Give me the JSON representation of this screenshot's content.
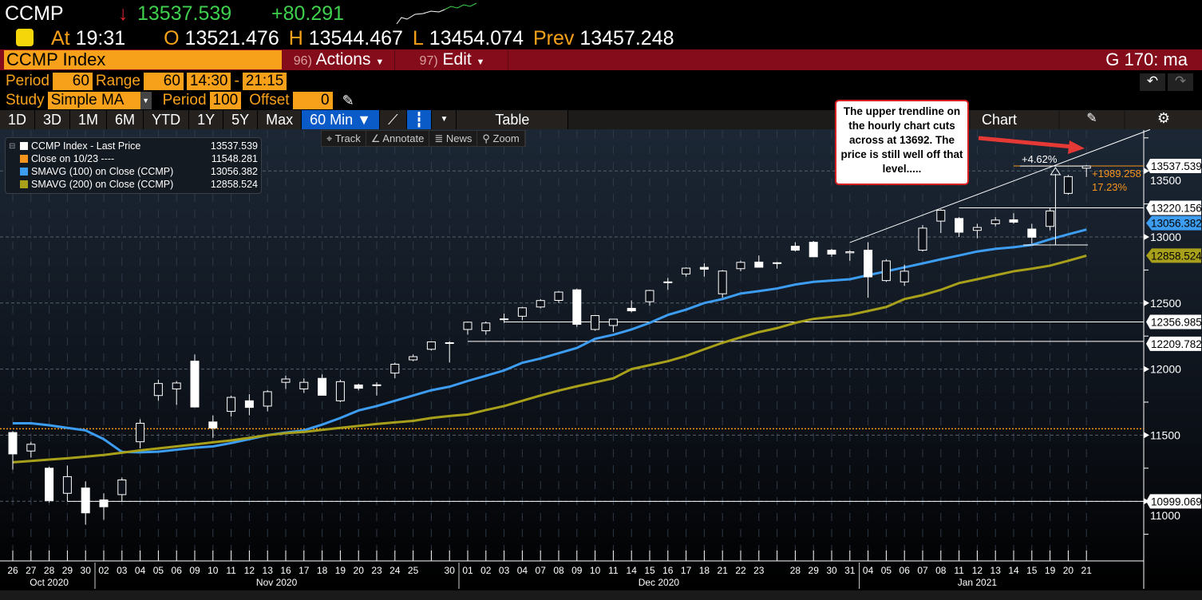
{
  "header": {
    "ticker": "CCMP",
    "arrow": "↓",
    "last": "13537.539",
    "change": "+80.291",
    "at_label": "At",
    "time": "19:31",
    "open_label": "O",
    "open": "13521.476",
    "high_label": "H",
    "high": "13544.467",
    "low_label": "L",
    "low": "13454.074",
    "prev_label": "Prev",
    "prev": "13457.248"
  },
  "bar": {
    "security": "CCMP Index",
    "actions_num": "96)",
    "actions": "Actions",
    "edit_num": "97)",
    "edit": "Edit",
    "function": "G 170: ma"
  },
  "params": {
    "period_label": "Period",
    "period": "60",
    "range_label": "Range",
    "range": "60",
    "from": "14:30",
    "dash": "-",
    "to": "21:15",
    "study_label": "Study",
    "study": "Simple MA",
    "study_period_label": "Period",
    "study_period": "100",
    "offset_label": "Offset",
    "offset": "0"
  },
  "tabs": [
    "1D",
    "3D",
    "1M",
    "6M",
    "YTD",
    "1Y",
    "5Y",
    "Max",
    "60 Min ▼"
  ],
  "table_label": "Table",
  "chart_label": "Chart",
  "tools": {
    "track": "Track",
    "annotate": "Annotate",
    "news": "News",
    "zoom": "Zoom"
  },
  "legend": [
    {
      "label": "CCMP Index - Last Price",
      "value": "13537.539",
      "color": "#ffffff"
    },
    {
      "label": "Close on 10/23 ----",
      "value": "11548.281",
      "color": "#f7941d"
    },
    {
      "label": "SMAVG (100)  on Close (CCMP)",
      "value": "13056.382",
      "color": "#3d9df2"
    },
    {
      "label": "SMAVG (200)  on Close (CCMP)",
      "value": "12858.524",
      "color": "#a8a01a"
    }
  ],
  "callout": "The upper trendline on the hourly chart cuts across at 13692. The price is still well off that level.....",
  "chart_data": {
    "type": "candlestick",
    "interval": "60 Min",
    "dates": [
      "26",
      "27",
      "28",
      "29",
      "30",
      "02",
      "03",
      "04",
      "05",
      "06",
      "09",
      "10",
      "11",
      "12",
      "13",
      "16",
      "17",
      "18",
      "19",
      "20",
      "23",
      "24",
      "25",
      "",
      "30",
      "01",
      "02",
      "03",
      "04",
      "07",
      "08",
      "09",
      "10",
      "11",
      "14",
      "15",
      "16",
      "17",
      "18",
      "21",
      "22",
      "23",
      "",
      "28",
      "29",
      "30",
      "31",
      "04",
      "05",
      "06",
      "07",
      "08",
      "11",
      "12",
      "13",
      "14",
      "15",
      "19",
      "20",
      "21"
    ],
    "months": [
      {
        "label": "Oct 2020",
        "from": 0,
        "to": 4
      },
      {
        "label": "Nov 2020",
        "from": 5,
        "to": 24
      },
      {
        "label": "Dec 2020",
        "from": 25,
        "to": 46
      },
      {
        "label": "Jan 2021",
        "from": 47,
        "to": 59
      }
    ],
    "ohlc": [
      [
        11520,
        11530,
        11240,
        11358
      ],
      [
        11380,
        11450,
        11330,
        11431
      ],
      [
        11250,
        11260,
        10990,
        11005
      ],
      [
        11060,
        11270,
        11000,
        11186
      ],
      [
        11100,
        11150,
        10822,
        10912
      ],
      [
        11010,
        11060,
        10860,
        10958
      ],
      [
        11050,
        11180,
        11000,
        11161
      ],
      [
        11450,
        11620,
        11400,
        11590
      ],
      [
        11800,
        11920,
        11760,
        11891
      ],
      [
        11850,
        11910,
        11730,
        11895
      ],
      [
        12060,
        12110,
        11710,
        11713
      ],
      [
        11600,
        11650,
        11480,
        11554
      ],
      [
        11680,
        11800,
        11640,
        11786
      ],
      [
        11760,
        11810,
        11650,
        11710
      ],
      [
        11720,
        11840,
        11680,
        11829
      ],
      [
        11900,
        11950,
        11850,
        11925
      ],
      [
        11850,
        11930,
        11820,
        11900
      ],
      [
        11930,
        11960,
        11800,
        11802
      ],
      [
        11760,
        11920,
        11750,
        11905
      ],
      [
        11880,
        11890,
        11840,
        11855
      ],
      [
        11880,
        11900,
        11800,
        11881
      ],
      [
        11970,
        12050,
        11930,
        12037
      ],
      [
        12070,
        12110,
        12060,
        12094
      ],
      [
        12150,
        12210,
        12140,
        12206
      ],
      [
        12200,
        12210,
        12050,
        12199
      ],
      [
        12300,
        12360,
        12260,
        12355
      ],
      [
        12290,
        12360,
        12260,
        12349
      ],
      [
        12380,
        12420,
        12350,
        12377
      ],
      [
        12400,
        12470,
        12370,
        12464
      ],
      [
        12470,
        12530,
        12460,
        12519
      ],
      [
        12520,
        12590,
        12500,
        12583
      ],
      [
        12600,
        12610,
        12320,
        12339
      ],
      [
        12300,
        12410,
        12290,
        12405
      ],
      [
        12330,
        12380,
        12280,
        12378
      ],
      [
        12460,
        12520,
        12430,
        12441
      ],
      [
        12510,
        12600,
        12480,
        12595
      ],
      [
        12660,
        12690,
        12600,
        12658
      ],
      [
        12720,
        12770,
        12700,
        12764
      ],
      [
        12770,
        12800,
        12700,
        12756
      ],
      [
        12570,
        12750,
        12540,
        12742
      ],
      [
        12760,
        12820,
        12740,
        12808
      ],
      [
        12810,
        12860,
        12770,
        12771
      ],
      [
        12800,
        12810,
        12760,
        12805
      ],
      [
        12930,
        12960,
        12890,
        12900
      ],
      [
        12960,
        12970,
        12850,
        12850
      ],
      [
        12900,
        12910,
        12850,
        12870
      ],
      [
        12880,
        12900,
        12820,
        12888
      ],
      [
        12900,
        12960,
        12540,
        12698
      ],
      [
        12670,
        12830,
        12660,
        12819
      ],
      [
        12660,
        12790,
        12630,
        12741
      ],
      [
        12900,
        13090,
        12890,
        13067
      ],
      [
        13120,
        13210,
        13030,
        13202
      ],
      [
        13140,
        13150,
        13000,
        13036
      ],
      [
        13050,
        13100,
        12990,
        13072
      ],
      [
        13100,
        13150,
        13080,
        13128
      ],
      [
        13130,
        13180,
        13100,
        13112
      ],
      [
        13060,
        13100,
        12950,
        12998
      ],
      [
        13080,
        13220,
        13050,
        13197
      ],
      [
        13330,
        13470,
        13320,
        13457
      ],
      [
        13521,
        13544,
        13454,
        13537.539
      ]
    ],
    "series": [
      {
        "name": "SMAVG (100)  on Close (CCMP)",
        "color": "#3d9df2",
        "values": [
          11590,
          11590,
          11575,
          11555,
          11536,
          11470,
          11373,
          11370,
          11375,
          11390,
          11405,
          11415,
          11440,
          11470,
          11500,
          11520,
          11536,
          11580,
          11630,
          11687,
          11720,
          11760,
          11800,
          11840,
          11867,
          11910,
          11950,
          11990,
          12048,
          12080,
          12120,
          12160,
          12229,
          12260,
          12300,
          12350,
          12410,
          12450,
          12500,
          12530,
          12572,
          12590,
          12610,
          12640,
          12660,
          12670,
          12680,
          12711,
          12740,
          12770,
          12800,
          12831,
          12860,
          12890,
          12910,
          12922,
          12940,
          12982,
          13020,
          13056.382
        ]
      },
      {
        "name": "SMAVG (200)  on Close (CCMP)",
        "color": "#a8a01a",
        "values": [
          11295,
          11305,
          11315,
          11325,
          11337,
          11350,
          11367,
          11385,
          11400,
          11415,
          11430,
          11446,
          11460,
          11480,
          11500,
          11515,
          11524,
          11540,
          11555,
          11570,
          11585,
          11597,
          11608,
          11630,
          11645,
          11657,
          11690,
          11720,
          11760,
          11800,
          11837,
          11870,
          11900,
          11930,
          12000,
          12030,
          12060,
          12100,
          12150,
          12199,
          12240,
          12280,
          12310,
          12350,
          12380,
          12395,
          12410,
          12440,
          12470,
          12530,
          12560,
          12600,
          12651,
          12680,
          12710,
          12740,
          12760,
          12783,
          12820,
          12858.524
        ]
      }
    ],
    "levels": [
      {
        "value": 13537.539,
        "label": "13537.539",
        "color": "#f7941d"
      },
      {
        "value": 13220.156,
        "label": "13220.156",
        "color": "#ffffff"
      },
      {
        "value": 12356.985,
        "label": "12356.985",
        "color": "#ffffff"
      },
      {
        "value": 12209.782,
        "label": "12209.782",
        "color": "#ffffff"
      },
      {
        "value": 10999.069,
        "label": "10999.069",
        "color": "#ffffff"
      },
      {
        "value": 11548.281,
        "label": "",
        "color": "#f7941d",
        "dotted": true
      }
    ],
    "ma_labels": [
      {
        "value": 13056.382,
        "label": "13056.382",
        "color": "#3d9df2"
      },
      {
        "value": 12858.524,
        "label": "12858.524",
        "color": "#a8a01a"
      }
    ],
    "trendline": {
      "from": {
        "index": 46,
        "value": 12958
      },
      "to": {
        "index": 62.5,
        "value": 13813
      }
    },
    "annotations": {
      "pct_move": "+4.62%",
      "change": "+1989.258",
      "change_pct": "17.23%"
    },
    "y_ticks": [
      11000,
      11500,
      12000,
      12500,
      13000,
      13500
    ],
    "ylim": [
      10600,
      13950
    ],
    "grid": true,
    "legend": "top-left"
  }
}
